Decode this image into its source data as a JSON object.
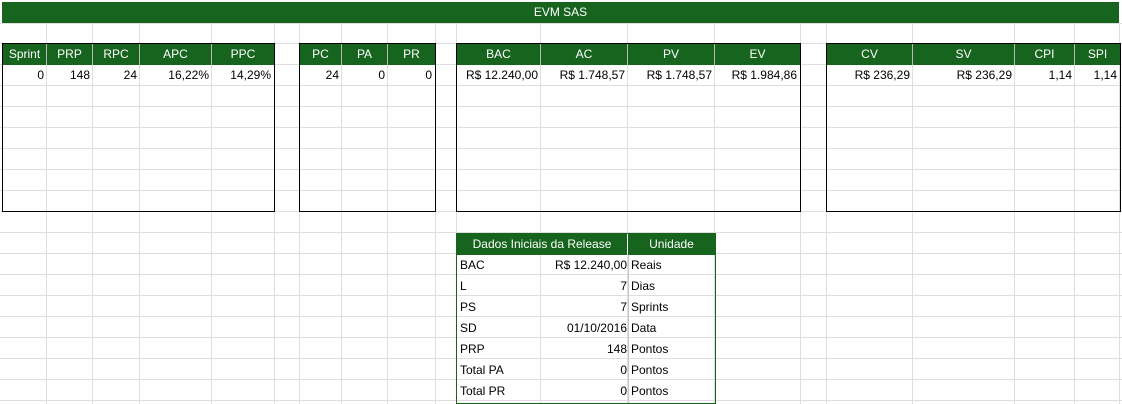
{
  "sheet": {
    "title": "EVM SAS",
    "accent_color": "#16641e"
  },
  "block1": {
    "headers": [
      "Sprint",
      "PRP",
      "RPC",
      "APC",
      "PPC"
    ],
    "row": [
      "0",
      "148",
      "24",
      "16,22%",
      "14,29%"
    ]
  },
  "block2": {
    "headers": [
      "PC",
      "PA",
      "PR"
    ],
    "row": [
      "24",
      "0",
      "0"
    ]
  },
  "block3": {
    "headers": [
      "BAC",
      "AC",
      "PV",
      "EV"
    ],
    "row": [
      "R$ 12.240,00",
      "R$ 1.748,57",
      "R$ 1.748,57",
      "R$ 1.984,86"
    ]
  },
  "block4": {
    "headers": [
      "CV",
      "SV",
      "CPI",
      "SPI"
    ],
    "row": [
      "R$ 236,29",
      "R$ 236,29",
      "1,14",
      "1,14"
    ]
  },
  "release": {
    "header_label": "Dados Iniciais da Release",
    "header_unit": "Unidade",
    "rows": [
      {
        "label": "BAC",
        "value": "R$ 12.240,00",
        "unit": "Reais"
      },
      {
        "label": "L",
        "value": "7",
        "unit": "Dias"
      },
      {
        "label": "PS",
        "value": "7",
        "unit": "Sprints"
      },
      {
        "label": "SD",
        "value": "01/10/2016",
        "unit": "Data"
      },
      {
        "label": "PRP",
        "value": "148",
        "unit": "Pontos"
      },
      {
        "label": "Total PA",
        "value": "0",
        "unit": "Pontos"
      },
      {
        "label": "Total PR",
        "value": "0",
        "unit": "Pontos"
      }
    ]
  }
}
